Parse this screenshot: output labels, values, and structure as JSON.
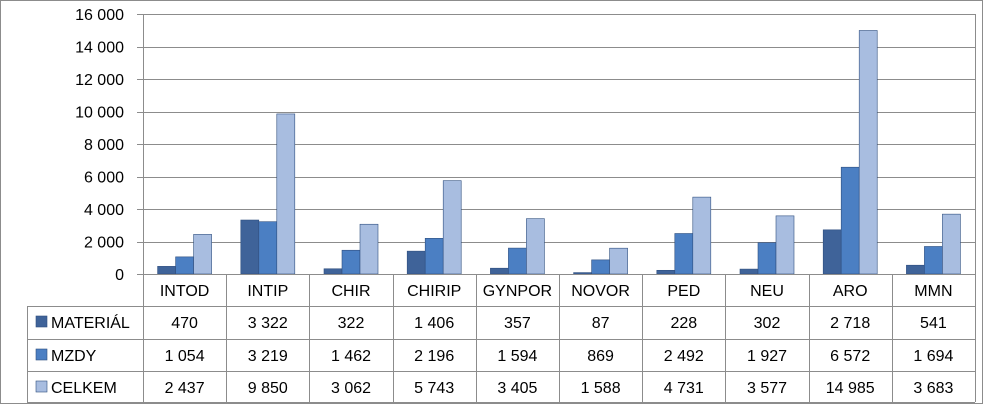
{
  "chart_data": {
    "type": "bar",
    "categories": [
      "INTOD",
      "INTIP",
      "CHIR",
      "CHIRIP",
      "GYNPOR",
      "NOVOR",
      "PED",
      "NEU",
      "ARO",
      "MMN"
    ],
    "series": [
      {
        "name": "MATERIÁL",
        "color": "#3f6399",
        "values": [
          470,
          3322,
          322,
          1406,
          357,
          87,
          228,
          302,
          2718,
          541
        ],
        "labels": [
          "470",
          "3 322",
          "322",
          "1 406",
          "357",
          "87",
          "228",
          "302",
          "2 718",
          "541"
        ]
      },
      {
        "name": "MZDY",
        "color": "#4b7fc3",
        "values": [
          1054,
          3219,
          1462,
          2196,
          1594,
          869,
          2492,
          1927,
          6572,
          1694
        ],
        "labels": [
          "1 054",
          "3 219",
          "1 462",
          "2 196",
          "1 594",
          "869",
          "2 492",
          "1 927",
          "6 572",
          "1 694"
        ]
      },
      {
        "name": "CELKEM",
        "color": "#a8bde0",
        "values": [
          2437,
          9850,
          3062,
          5743,
          3405,
          1588,
          4731,
          3577,
          14985,
          3683
        ],
        "labels": [
          "2 437",
          "9 850",
          "3 062",
          "5 743",
          "3 405",
          "1 588",
          "4 731",
          "3 577",
          "14 985",
          "3 683"
        ]
      }
    ],
    "yticks": [
      0,
      2000,
      4000,
      6000,
      8000,
      10000,
      12000,
      14000,
      16000
    ],
    "ytick_labels": [
      "0",
      "2 000",
      "4 000",
      "6 000",
      "8 000",
      "10 000",
      "12 000",
      "14 000",
      "16 000"
    ],
    "ylim": [
      0,
      16000
    ],
    "grid": true,
    "legend": "data-table-left",
    "title": "",
    "xlabel": "",
    "ylabel": ""
  }
}
